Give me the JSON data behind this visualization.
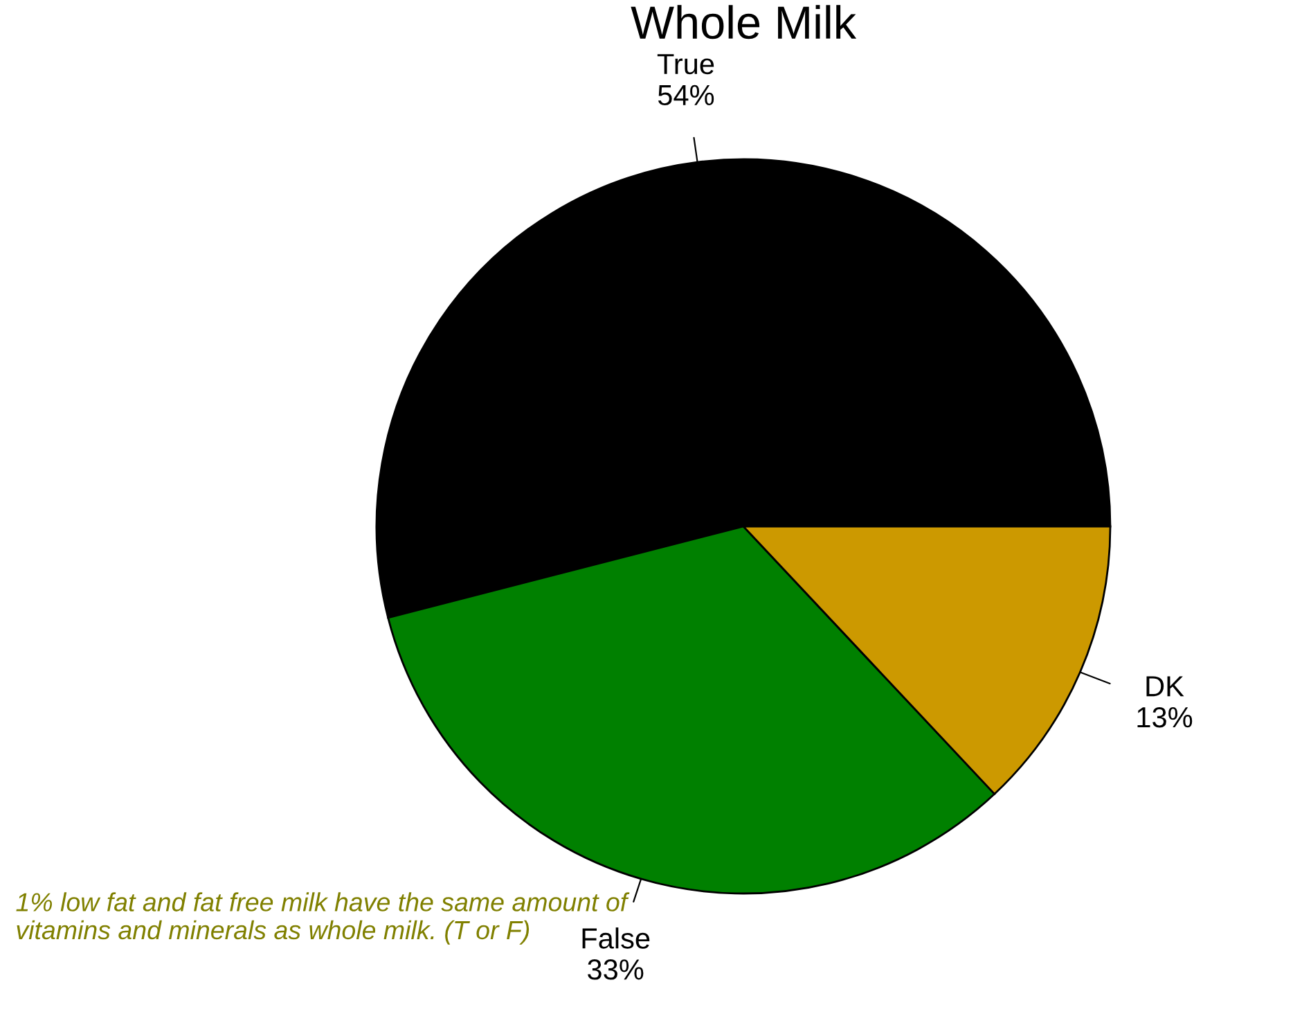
{
  "chart_data": {
    "type": "pie",
    "title": "Whole Milk",
    "categories": [
      "True",
      "False",
      "DK"
    ],
    "values": [
      54,
      33,
      13
    ],
    "value_labels": [
      "54%",
      "33%",
      "13%"
    ],
    "colors": [
      "#000000",
      "#008000",
      "#cc9900"
    ],
    "annotations": [
      "1% low fat and fat free milk have the same amount of vitamins and minerals as whole milk. (T or F)"
    ]
  }
}
